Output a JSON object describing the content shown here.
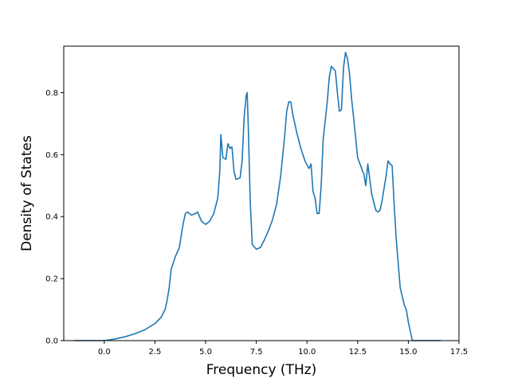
{
  "chart_data": {
    "type": "line",
    "title": "",
    "xlabel": "Frequency (THz)",
    "ylabel": "Density of States",
    "xlim": [
      -2.0,
      17.5
    ],
    "ylim": [
      0.0,
      0.95
    ],
    "xticks": [
      0.0,
      2.5,
      5.0,
      7.5,
      10.0,
      12.5,
      15.0,
      17.5
    ],
    "xtick_labels": [
      "0.0",
      "2.5",
      "5.0",
      "7.5",
      "10.0",
      "12.5",
      "15.0",
      "17.5"
    ],
    "yticks": [
      0.0,
      0.2,
      0.4,
      0.6,
      0.8
    ],
    "ytick_labels": [
      "0.0",
      "0.2",
      "0.4",
      "0.6",
      "0.8"
    ],
    "grid": false,
    "legend": false,
    "colors": {
      "series": "#1f77b4",
      "axes": "#000000"
    },
    "series": [
      {
        "x": [
          -1.5,
          -0.5,
          0.0,
          0.5,
          1.0,
          1.5,
          2.0,
          2.5,
          2.8,
          3.0,
          3.1,
          3.2,
          3.3,
          3.5,
          3.7,
          3.9,
          4.0,
          4.1,
          4.3,
          4.5,
          4.6,
          4.8,
          5.0,
          5.2,
          5.4,
          5.6,
          5.7,
          5.75,
          5.85,
          6.0,
          6.1,
          6.2,
          6.3,
          6.4,
          6.5,
          6.7,
          6.8,
          6.9,
          7.0,
          7.05,
          7.1,
          7.2,
          7.3,
          7.5,
          7.7,
          7.9,
          8.1,
          8.3,
          8.5,
          8.7,
          8.9,
          9.0,
          9.1,
          9.2,
          9.3,
          9.5,
          9.7,
          9.9,
          10.1,
          10.2,
          10.3,
          10.4,
          10.5,
          10.6,
          10.7,
          10.8,
          11.0,
          11.1,
          11.2,
          11.4,
          11.5,
          11.6,
          11.7,
          11.8,
          11.9,
          12.0,
          12.1,
          12.2,
          12.3,
          12.5,
          12.7,
          12.75,
          12.8,
          12.9,
          13.0,
          13.2,
          13.4,
          13.5,
          13.6,
          13.7,
          13.8,
          13.9,
          14.0,
          14.1,
          14.2,
          14.3,
          14.4,
          14.6,
          14.8,
          14.9,
          15.0,
          15.2,
          15.5,
          16.0,
          16.6
        ],
        "y": [
          0.0,
          0.0,
          0.0,
          0.005,
          0.012,
          0.022,
          0.035,
          0.055,
          0.075,
          0.1,
          0.13,
          0.17,
          0.23,
          0.27,
          0.3,
          0.38,
          0.41,
          0.415,
          0.405,
          0.41,
          0.415,
          0.385,
          0.375,
          0.385,
          0.41,
          0.46,
          0.55,
          0.665,
          0.59,
          0.585,
          0.635,
          0.62,
          0.625,
          0.545,
          0.52,
          0.525,
          0.58,
          0.72,
          0.79,
          0.8,
          0.7,
          0.45,
          0.31,
          0.295,
          0.3,
          0.325,
          0.355,
          0.39,
          0.44,
          0.53,
          0.66,
          0.74,
          0.77,
          0.77,
          0.73,
          0.67,
          0.62,
          0.58,
          0.555,
          0.57,
          0.48,
          0.46,
          0.41,
          0.41,
          0.5,
          0.65,
          0.77,
          0.85,
          0.885,
          0.87,
          0.8,
          0.74,
          0.745,
          0.88,
          0.93,
          0.91,
          0.86,
          0.78,
          0.72,
          0.59,
          0.555,
          0.545,
          0.54,
          0.5,
          0.57,
          0.47,
          0.42,
          0.415,
          0.42,
          0.45,
          0.49,
          0.53,
          0.58,
          0.57,
          0.565,
          0.44,
          0.33,
          0.17,
          0.115,
          0.1,
          0.06,
          0.0,
          0.0,
          0.0,
          0.0
        ]
      }
    ]
  }
}
